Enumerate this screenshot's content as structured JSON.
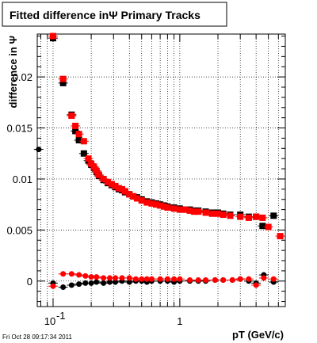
{
  "title": "Fitted difference inΨ   Primary Tracks",
  "timestamp": "Fri Oct 28 09:17:34 2011",
  "chart_data": {
    "type": "scatter",
    "title": "Fitted difference inΨ   Primary Tracks",
    "xlabel": "pT (GeV/c)",
    "ylabel": "difference in Ψ",
    "xscale": "log",
    "xlim": [
      0.075,
      6.8
    ],
    "ylim": [
      -0.0025,
      0.0242
    ],
    "grid": true,
    "x_ticks": [
      {
        "value": 0.1,
        "base": "10",
        "exp": "-1"
      },
      {
        "value": 1,
        "label": "1"
      }
    ],
    "y_ticks": [
      {
        "value": 0,
        "label": "0"
      },
      {
        "value": 0.005,
        "label": "0.005"
      },
      {
        "value": 0.01,
        "label": "0.01"
      },
      {
        "value": 0.015,
        "label": "0.015"
      },
      {
        "value": 0.02,
        "label": "0.02"
      }
    ],
    "series": [
      {
        "color": "#000000",
        "marker": "square",
        "x": [
          0.1,
          0.12,
          0.14,
          0.15,
          0.16,
          0.175,
          0.19,
          0.2,
          0.21,
          0.22,
          0.23,
          0.25,
          0.27,
          0.29,
          0.31,
          0.33,
          0.35,
          0.37,
          0.4,
          0.43,
          0.46,
          0.5,
          0.55,
          0.6,
          0.65,
          0.7,
          0.75,
          0.8,
          0.9,
          1.0,
          1.1,
          1.2,
          1.3,
          1.4,
          1.6,
          1.8,
          2.0,
          2.2,
          2.5,
          3.0,
          3.5,
          4.0,
          4.5,
          5.5
        ],
        "y": [
          0.0238,
          0.0194,
          0.0163,
          0.0147,
          0.0138,
          0.0125,
          0.0118,
          0.0114,
          0.0111,
          0.0107,
          0.0103,
          0.0099,
          0.0096,
          0.0094,
          0.0092,
          0.009,
          0.0089,
          0.0087,
          0.0085,
          0.0083,
          0.0082,
          0.008,
          0.0078,
          0.0077,
          0.0076,
          0.0075,
          0.0074,
          0.0073,
          0.0072,
          0.0071,
          0.007,
          0.007,
          0.0069,
          0.0069,
          0.0068,
          0.0067,
          0.0067,
          0.0066,
          0.0065,
          0.0065,
          0.0063,
          0.0063,
          0.0054,
          0.0064
        ]
      },
      {
        "color": "#ff0000",
        "marker": "square",
        "x": [
          0.1,
          0.12,
          0.14,
          0.15,
          0.16,
          0.175,
          0.19,
          0.2,
          0.21,
          0.22,
          0.23,
          0.25,
          0.27,
          0.29,
          0.31,
          0.33,
          0.35,
          0.37,
          0.4,
          0.43,
          0.46,
          0.5,
          0.55,
          0.6,
          0.65,
          0.7,
          0.75,
          0.8,
          0.9,
          1.0,
          1.1,
          1.2,
          1.3,
          1.4,
          1.6,
          1.8,
          2.0,
          2.2,
          2.5,
          3.0,
          3.5,
          4.0,
          4.5,
          5.0,
          6.2
        ],
        "y": [
          0.024,
          0.0198,
          0.0162,
          0.0152,
          0.0144,
          0.0137,
          0.012,
          0.0115,
          0.0112,
          0.0108,
          0.0104,
          0.01,
          0.0097,
          0.0095,
          0.0093,
          0.0091,
          0.009,
          0.0088,
          0.0085,
          0.0083,
          0.0081,
          0.0079,
          0.0077,
          0.0076,
          0.0075,
          0.0074,
          0.0073,
          0.0072,
          0.0071,
          0.007,
          0.007,
          0.0069,
          0.0068,
          0.0068,
          0.0067,
          0.0066,
          0.0066,
          0.0065,
          0.0064,
          0.0063,
          0.0062,
          0.0063,
          0.0062,
          0.0053,
          0.0044
        ]
      },
      {
        "color": "#000000",
        "marker": "circle",
        "x": [
          0.077,
          0.1,
          0.12,
          0.14,
          0.16,
          0.18,
          0.2,
          0.22,
          0.25,
          0.28,
          0.31,
          0.35,
          0.4,
          0.45,
          0.5,
          0.55,
          0.6,
          0.7,
          0.8,
          0.9,
          1.0,
          1.2,
          1.4,
          1.6,
          1.9,
          2.2,
          2.6,
          3.0,
          3.5,
          4.0,
          4.6,
          5.5
        ],
        "y": [
          0.0129,
          -0.0002,
          -0.0006,
          -0.0004,
          -0.0003,
          -0.0002,
          -0.0002,
          -0.0001,
          -0.0002,
          -0.0001,
          -0.0001,
          0.0,
          -0.0001,
          0.0,
          0.0,
          -0.0001,
          0.0,
          0.0,
          0.0,
          -0.0001,
          0.0,
          0.0,
          0.0,
          0.0,
          0.0001,
          0.0001,
          0.0001,
          0.0002,
          0.0,
          -0.0002,
          0.0006,
          -0.0001
        ]
      },
      {
        "color": "#ff0000",
        "marker": "circle",
        "x": [
          0.1,
          0.12,
          0.14,
          0.16,
          0.18,
          0.2,
          0.22,
          0.25,
          0.28,
          0.31,
          0.35,
          0.4,
          0.45,
          0.5,
          0.55,
          0.6,
          0.7,
          0.8,
          0.9,
          1.0,
          1.2,
          1.4,
          1.6,
          1.9,
          2.2,
          2.6,
          3.0,
          3.5,
          4.0,
          4.6,
          5.5
        ],
        "y": [
          -0.0005,
          0.0007,
          0.0007,
          0.0006,
          0.0005,
          0.0004,
          0.0004,
          0.0003,
          0.0003,
          0.0003,
          0.0003,
          0.0003,
          0.0002,
          0.0002,
          0.0002,
          0.0002,
          0.0002,
          0.0002,
          0.0002,
          0.0002,
          0.0001,
          0.0001,
          0.0001,
          0.0001,
          0.0001,
          0.0001,
          0.0002,
          0.0002,
          -0.0004,
          0.0003,
          0.0002
        ]
      }
    ]
  }
}
